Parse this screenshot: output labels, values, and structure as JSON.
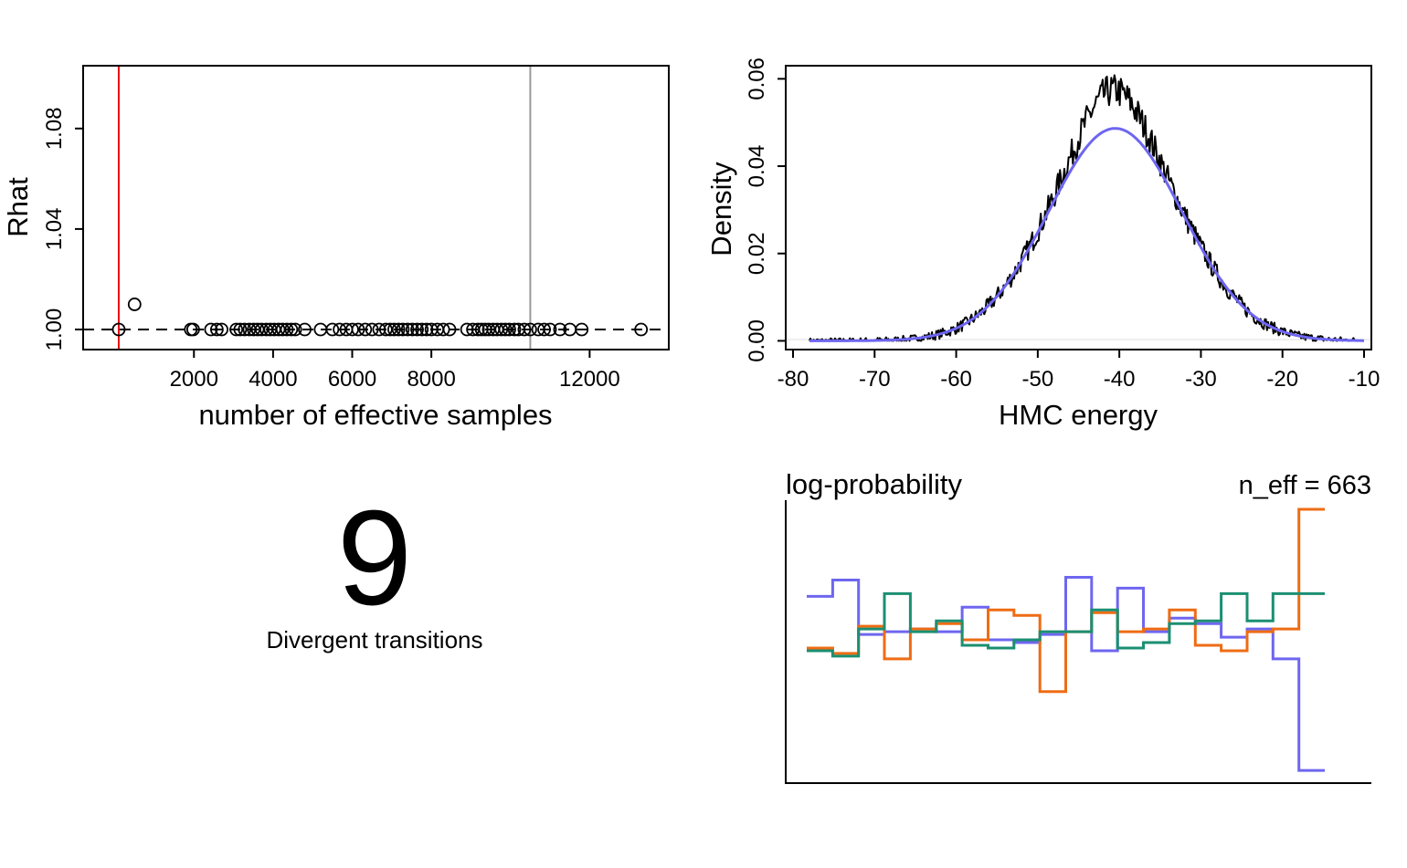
{
  "chart_data": [
    {
      "type": "scatter",
      "xlabel": "number of effective samples",
      "ylabel": "Rhat",
      "xlim": [
        -800,
        14000
      ],
      "ylim": [
        0.992,
        1.105
      ],
      "xticks": [
        "2000",
        "4000",
        "6000",
        "8000",
        "12000"
      ],
      "xtick_values": [
        2000,
        4000,
        6000,
        8000,
        12000
      ],
      "yticks": [
        "1.00",
        "1.04",
        "1.08"
      ],
      "ytick_values": [
        1.0,
        1.04,
        1.08
      ],
      "reference_line_y": 1.0,
      "red_line_x": 100,
      "gray_line_x": 10500,
      "colors": {
        "red": "#e8100f",
        "gray": "#999999"
      },
      "points": [
        {
          "x": 500,
          "y": 1.01
        },
        {
          "x": 100,
          "y": 1.0
        },
        {
          "x": 1920,
          "y": 1.0
        },
        {
          "x": 1980,
          "y": 1.0
        },
        {
          "x": 2430,
          "y": 1.0
        },
        {
          "x": 2580,
          "y": 1.0
        },
        {
          "x": 2700,
          "y": 1.0
        },
        {
          "x": 3070,
          "y": 1.0
        },
        {
          "x": 3170,
          "y": 1.0
        },
        {
          "x": 3280,
          "y": 1.0
        },
        {
          "x": 3400,
          "y": 1.0
        },
        {
          "x": 3510,
          "y": 1.0
        },
        {
          "x": 3610,
          "y": 1.0
        },
        {
          "x": 3710,
          "y": 1.0
        },
        {
          "x": 3830,
          "y": 1.0
        },
        {
          "x": 3930,
          "y": 1.0
        },
        {
          "x": 4030,
          "y": 1.0
        },
        {
          "x": 4140,
          "y": 1.0
        },
        {
          "x": 4240,
          "y": 1.0
        },
        {
          "x": 4350,
          "y": 1.0
        },
        {
          "x": 4460,
          "y": 1.0
        },
        {
          "x": 4560,
          "y": 1.0
        },
        {
          "x": 4800,
          "y": 1.0
        },
        {
          "x": 5200,
          "y": 1.0
        },
        {
          "x": 5500,
          "y": 1.0
        },
        {
          "x": 5680,
          "y": 1.0
        },
        {
          "x": 5850,
          "y": 1.0
        },
        {
          "x": 6000,
          "y": 1.0
        },
        {
          "x": 6150,
          "y": 1.0
        },
        {
          "x": 6330,
          "y": 1.0
        },
        {
          "x": 6500,
          "y": 1.0
        },
        {
          "x": 6680,
          "y": 1.0
        },
        {
          "x": 6850,
          "y": 1.0
        },
        {
          "x": 6960,
          "y": 1.0
        },
        {
          "x": 7060,
          "y": 1.0
        },
        {
          "x": 7170,
          "y": 1.0
        },
        {
          "x": 7280,
          "y": 1.0
        },
        {
          "x": 7400,
          "y": 1.0
        },
        {
          "x": 7520,
          "y": 1.0
        },
        {
          "x": 7640,
          "y": 1.0
        },
        {
          "x": 7760,
          "y": 1.0
        },
        {
          "x": 7880,
          "y": 1.0
        },
        {
          "x": 8000,
          "y": 1.0
        },
        {
          "x": 8150,
          "y": 1.0
        },
        {
          "x": 8300,
          "y": 1.0
        },
        {
          "x": 8460,
          "y": 1.0
        },
        {
          "x": 8900,
          "y": 1.0
        },
        {
          "x": 9050,
          "y": 1.0
        },
        {
          "x": 9180,
          "y": 1.0
        },
        {
          "x": 9270,
          "y": 1.0
        },
        {
          "x": 9360,
          "y": 1.0
        },
        {
          "x": 9450,
          "y": 1.0
        },
        {
          "x": 9560,
          "y": 1.0
        },
        {
          "x": 9660,
          "y": 1.0
        },
        {
          "x": 9770,
          "y": 1.0
        },
        {
          "x": 9870,
          "y": 1.0
        },
        {
          "x": 9970,
          "y": 1.0
        },
        {
          "x": 10100,
          "y": 1.0
        },
        {
          "x": 10200,
          "y": 1.0
        },
        {
          "x": 10350,
          "y": 1.0
        },
        {
          "x": 10500,
          "y": 1.0
        },
        {
          "x": 10700,
          "y": 1.0
        },
        {
          "x": 10850,
          "y": 1.0
        },
        {
          "x": 11000,
          "y": 1.0
        },
        {
          "x": 11250,
          "y": 1.0
        },
        {
          "x": 11500,
          "y": 1.0
        },
        {
          "x": 11800,
          "y": 1.0
        },
        {
          "x": 13300,
          "y": 1.0
        }
      ]
    },
    {
      "type": "line",
      "xlabel": "HMC energy",
      "ylabel": "Density",
      "xlim": [
        -80,
        -10
      ],
      "ylim": [
        -0.002,
        0.063
      ],
      "xticks": [
        "-80",
        "-70",
        "-60",
        "-50",
        "-40",
        "-30",
        "-20",
        "-10"
      ],
      "xtick_values": [
        -80,
        -70,
        -60,
        -50,
        -40,
        -30,
        -20,
        -10
      ],
      "yticks": [
        "0.00",
        "0.02",
        "0.04",
        "0.06"
      ],
      "ytick_values": [
        0,
        0.02,
        0.04,
        0.06
      ],
      "normal_fit": {
        "mean": -40.5,
        "sd": 8.2,
        "from": -78,
        "to": -10,
        "color": "#6e66f0"
      },
      "empirical_color": "#000000"
    },
    {
      "type": "line",
      "title": "log-probability",
      "annotation": "n_eff = 663",
      "bins": 20,
      "series": [
        {
          "color": "#6e66f0",
          "values": [
            0.68,
            0.74,
            0.54,
            0.55,
            0.56,
            0.55,
            0.64,
            0.52,
            0.51,
            0.54,
            0.75,
            0.48,
            0.71,
            0.55,
            0.6,
            0.58,
            0.53,
            0.56,
            0.45,
            0.04
          ]
        },
        {
          "color": "#ee6c14",
          "values": [
            0.49,
            0.47,
            0.57,
            0.45,
            0.56,
            0.58,
            0.52,
            0.63,
            0.61,
            0.33,
            0.55,
            0.62,
            0.55,
            0.56,
            0.63,
            0.5,
            0.48,
            0.55,
            0.56,
            1.0
          ]
        },
        {
          "color": "#1b8f72",
          "values": [
            0.48,
            0.46,
            0.56,
            0.69,
            0.55,
            0.59,
            0.5,
            0.49,
            0.52,
            0.55,
            0.55,
            0.63,
            0.49,
            0.51,
            0.58,
            0.59,
            0.69,
            0.59,
            0.69,
            0.69
          ]
        }
      ]
    }
  ],
  "divergent": {
    "count": "9",
    "label": "Divergent transitions"
  }
}
